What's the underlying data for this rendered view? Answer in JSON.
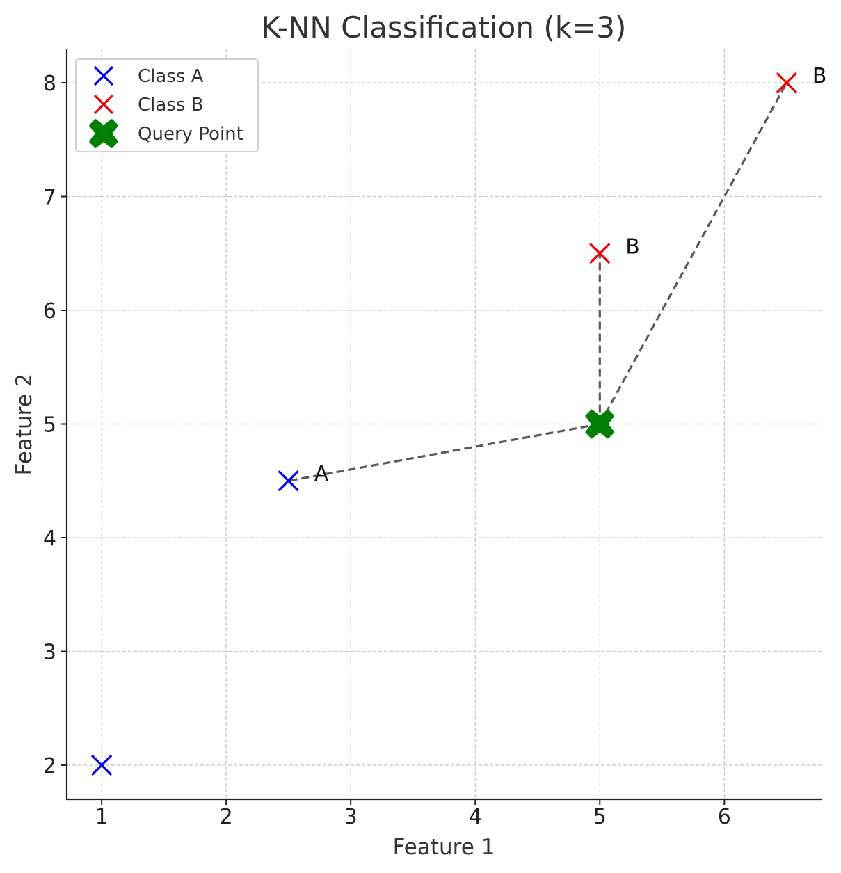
{
  "chart_data": {
    "type": "scatter",
    "title": "K-NN Classification (k=3)",
    "xlabel": "Feature 1",
    "ylabel": "Feature 2",
    "xlim": [
      0.72,
      6.78
    ],
    "ylim": [
      1.7,
      8.3
    ],
    "xticks": [
      1,
      2,
      3,
      4,
      5,
      6
    ],
    "yticks": [
      2,
      3,
      4,
      5,
      6,
      7,
      8
    ],
    "grid": true,
    "legend_position": "top-left",
    "series": [
      {
        "name": "Class A",
        "marker": "x",
        "color": "#0000ee",
        "points": [
          {
            "x": 1,
            "y": 2
          },
          {
            "x": 2.5,
            "y": 4.5
          }
        ]
      },
      {
        "name": "Class B",
        "marker": "x",
        "color": "#ee0000",
        "points": [
          {
            "x": 5,
            "y": 6.5
          },
          {
            "x": 6.5,
            "y": 8
          }
        ]
      },
      {
        "name": "Query Point",
        "marker": "X",
        "color": "#008000",
        "points": [
          {
            "x": 5,
            "y": 5
          }
        ]
      }
    ],
    "neighbor_lines": [
      {
        "from": [
          5,
          5
        ],
        "to": [
          2.5,
          4.5
        ]
      },
      {
        "from": [
          5,
          5
        ],
        "to": [
          5,
          6.5
        ]
      },
      {
        "from": [
          5,
          5
        ],
        "to": [
          6.5,
          8
        ]
      }
    ],
    "annotations": [
      {
        "text": "A",
        "x": 2.5,
        "y": 4.5
      },
      {
        "text": "B",
        "x": 5,
        "y": 6.5
      },
      {
        "text": "B",
        "x": 6.5,
        "y": 8
      }
    ],
    "colors": {
      "line": "#5a5a5a",
      "grid": "#c8c8c8"
    }
  }
}
